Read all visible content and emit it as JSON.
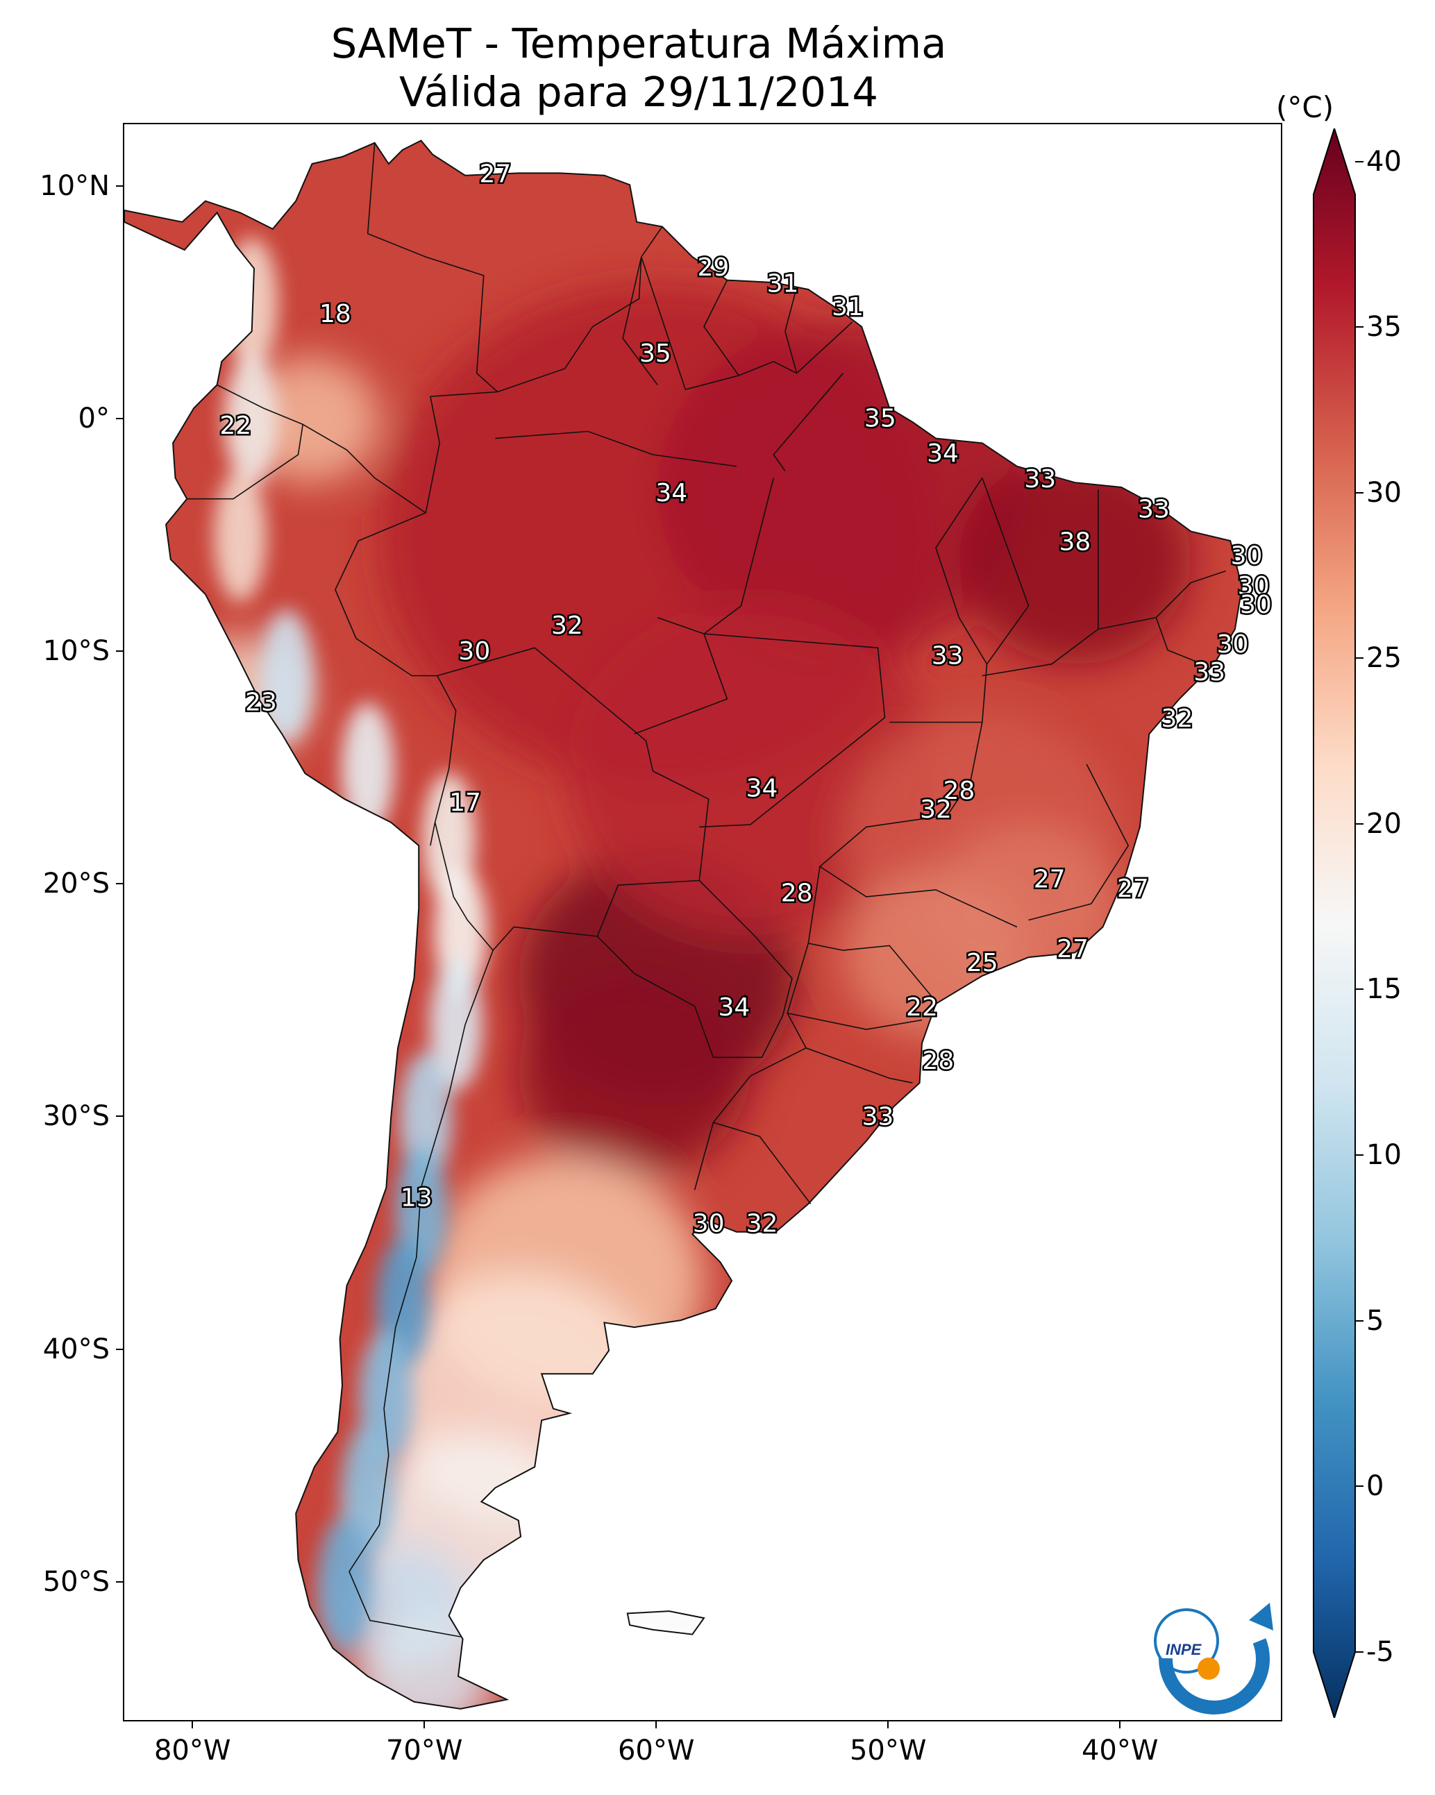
{
  "title": {
    "line1": "SAMeT - Temperatura Máxima",
    "line2": "Válida para 29/11/2014"
  },
  "colorbar": {
    "unit": "(°C)",
    "ticks": [
      "40",
      "35",
      "30",
      "25",
      "20",
      "15",
      "10",
      "5",
      "0",
      "-5"
    ],
    "range": [
      -7,
      41
    ],
    "colors": [
      "#053061",
      "#2166ac",
      "#4393c3",
      "#92c5de",
      "#d1e5f0",
      "#f7f7f7",
      "#fddbc7",
      "#f4a582",
      "#d6604d",
      "#b2182b",
      "#67001f"
    ]
  },
  "axes": {
    "lat_labels": [
      "10°N",
      "0°",
      "10°S",
      "20°S",
      "30°S",
      "40°S",
      "50°S"
    ],
    "lon_labels": [
      "80°W",
      "70°W",
      "60°W",
      "50°W",
      "40°W"
    ]
  },
  "labels": [
    {
      "text": "27",
      "lon": -67.0,
      "lat": 10.5
    },
    {
      "text": "29",
      "lon": -57.6,
      "lat": 6.5
    },
    {
      "text": "31",
      "lon": -54.6,
      "lat": 5.8
    },
    {
      "text": "31",
      "lon": -51.8,
      "lat": 4.8
    },
    {
      "text": "35",
      "lon": -60.1,
      "lat": 2.8
    },
    {
      "text": "18",
      "lon": -73.9,
      "lat": 4.5
    },
    {
      "text": "22",
      "lon": -78.2,
      "lat": -0.3
    },
    {
      "text": "35",
      "lon": -50.4,
      "lat": 0.0
    },
    {
      "text": "34",
      "lon": -47.7,
      "lat": -1.5
    },
    {
      "text": "33",
      "lon": -43.5,
      "lat": -2.6
    },
    {
      "text": "34",
      "lon": -59.4,
      "lat": -3.2
    },
    {
      "text": "33",
      "lon": -38.6,
      "lat": -3.9
    },
    {
      "text": "38",
      "lon": -42.0,
      "lat": -5.3
    },
    {
      "text": "30",
      "lon": -34.6,
      "lat": -5.9
    },
    {
      "text": "30",
      "lon": -34.3,
      "lat": -7.2
    },
    {
      "text": "30",
      "lon": -34.2,
      "lat": -8.0
    },
    {
      "text": "32",
      "lon": -63.9,
      "lat": -8.9
    },
    {
      "text": "30",
      "lon": -35.2,
      "lat": -9.7
    },
    {
      "text": "30",
      "lon": -67.9,
      "lat": -10.0
    },
    {
      "text": "33",
      "lon": -47.5,
      "lat": -10.2
    },
    {
      "text": "33",
      "lon": -36.2,
      "lat": -10.9
    },
    {
      "text": "23",
      "lon": -77.1,
      "lat": -12.2
    },
    {
      "text": "32",
      "lon": -37.6,
      "lat": -12.9
    },
    {
      "text": "34",
      "lon": -55.5,
      "lat": -15.9
    },
    {
      "text": "28",
      "lon": -47.0,
      "lat": -16.0
    },
    {
      "text": "32",
      "lon": -48.0,
      "lat": -16.8
    },
    {
      "text": "17",
      "lon": -68.3,
      "lat": -16.5
    },
    {
      "text": "27",
      "lon": -43.1,
      "lat": -19.8
    },
    {
      "text": "27",
      "lon": -39.5,
      "lat": -20.2
    },
    {
      "text": "28",
      "lon": -54.0,
      "lat": -20.4
    },
    {
      "text": "27",
      "lon": -42.1,
      "lat": -22.8
    },
    {
      "text": "25",
      "lon": -46.0,
      "lat": -23.4
    },
    {
      "text": "22",
      "lon": -48.6,
      "lat": -25.3
    },
    {
      "text": "34",
      "lon": -56.7,
      "lat": -25.3
    },
    {
      "text": "28",
      "lon": -47.9,
      "lat": -27.6
    },
    {
      "text": "33",
      "lon": -50.5,
      "lat": -30.0
    },
    {
      "text": "13",
      "lon": -70.4,
      "lat": -33.5
    },
    {
      "text": "30",
      "lon": -57.8,
      "lat": -34.6
    },
    {
      "text": "32",
      "lon": -55.5,
      "lat": -34.6
    }
  ],
  "logo": {
    "text": "INPE"
  }
}
